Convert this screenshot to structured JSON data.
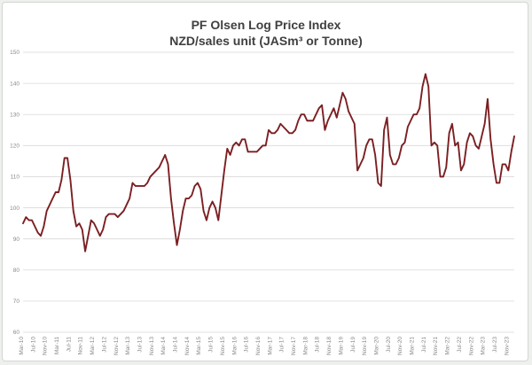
{
  "chart_data": {
    "type": "line",
    "title": "PF Olsen Log Price Index",
    "subtitle": "NZD/sales unit (JASm³ or Tonne)",
    "xlabel": "",
    "ylabel": "",
    "ylim": [
      60,
      150
    ],
    "yticks": [
      60,
      70,
      80,
      90,
      100,
      110,
      120,
      130,
      140,
      150
    ],
    "grid": true,
    "legend": "none",
    "line_color": "#7b1f22",
    "grid_color": "#d9d9d9",
    "x_tick_labels": [
      "Mar-10",
      "Jul-10",
      "Nov-10",
      "Mar-11",
      "Jul-11",
      "Nov-11",
      "Mar-12",
      "Jul-12",
      "Nov-12",
      "Mar-13",
      "Jul-13",
      "Nov-13",
      "Mar-14",
      "Jul-14",
      "Nov-14",
      "Mar-15",
      "Jul-15",
      "Nov-15",
      "Mar-16",
      "Jul-16",
      "Nov-16",
      "Mar-17",
      "Jul-17",
      "Nov-17",
      "Mar-18",
      "Jul-18",
      "Nov-18",
      "Mar-19",
      "Jul-19",
      "Nov-19",
      "Mar-20",
      "Jul-20",
      "Nov-20",
      "Mar-21",
      "Jul-21",
      "Nov-21",
      "Mar-22",
      "Jul-22",
      "Nov-22",
      "Mar-23",
      "Jul-23",
      "Nov-23"
    ],
    "series": [
      {
        "name": "PF Olsen Log Price Index",
        "x_start": "Mar-10",
        "step": "1 month",
        "values": [
          95,
          97,
          96,
          96,
          94,
          92,
          91,
          94,
          99,
          101,
          103,
          105,
          105,
          109,
          116,
          116,
          109,
          99,
          94,
          95,
          93,
          86,
          91,
          96,
          95,
          93,
          91,
          93,
          97,
          98,
          98,
          98,
          97,
          98,
          99,
          101,
          103,
          108,
          107,
          107,
          107,
          107,
          108,
          110,
          111,
          112,
          113,
          115,
          117,
          114,
          103,
          95,
          88,
          93,
          99,
          103,
          103,
          104,
          107,
          108,
          106,
          99,
          96,
          100,
          102,
          100,
          96,
          104,
          112,
          119,
          117,
          120,
          121,
          120,
          122,
          122,
          118,
          118,
          118,
          118,
          119,
          120,
          120,
          125,
          124,
          124,
          125,
          127,
          126,
          125,
          124,
          124,
          125,
          128,
          130,
          130,
          128,
          128,
          128,
          130,
          132,
          133,
          125,
          128,
          130,
          132,
          129,
          133,
          137,
          135,
          131,
          129,
          127,
          112,
          114,
          116,
          120,
          122,
          122,
          117,
          108,
          107,
          125,
          129,
          117,
          114,
          114,
          116,
          120,
          121,
          126,
          128,
          130,
          130,
          132,
          139,
          143,
          139,
          120,
          121,
          120,
          110,
          110,
          113,
          124,
          127,
          120,
          121,
          112,
          114,
          121,
          124,
          123,
          120,
          119,
          123,
          127,
          135,
          122,
          114,
          108,
          108,
          114,
          114,
          112,
          118,
          123
        ]
      }
    ]
  }
}
